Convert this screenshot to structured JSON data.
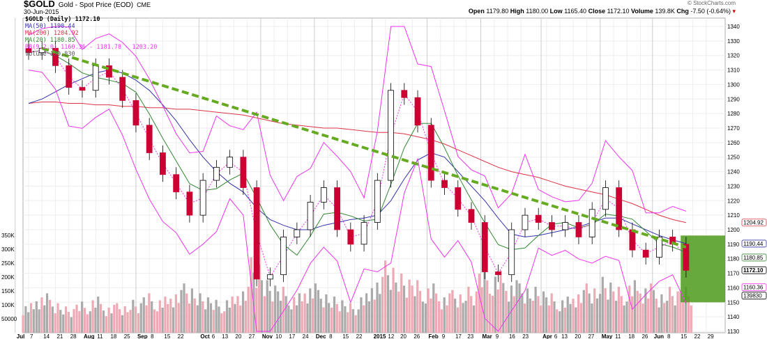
{
  "header": {
    "symbol": "$GOLD",
    "name": "Gold - Spot Price (EOD)",
    "exchange": "CME",
    "date": "30-Jun-2015",
    "credit": "© StockCharts.com",
    "open_label": "Open",
    "open": "1179.80",
    "high_label": "High",
    "high": "1180.00",
    "low_label": "Low",
    "low": "1165.40",
    "close_label": "Close",
    "close": "1172.10",
    "volume_label": "Volume",
    "volume": "139.8K",
    "chg_label": "Chg",
    "chg": "-7.50 (-0.64%)"
  },
  "legend": {
    "main": "$GOLD (Daily) 1172.10",
    "ma50": "MA(50) 1190.44",
    "ma200": "MA(200) 1204.92",
    "ma20": "MA(20) 1180.85",
    "bb": "BB(9,2.0) 1160.36 - 1181.78 - 1203.20",
    "volume": "Volume 139,830"
  },
  "colors": {
    "up": "#ffffff",
    "down": "#cc0033",
    "ma50": "#3333aa",
    "ma200": "#dd3344",
    "ma20": "#338833",
    "bb": "#ee33ee",
    "trend": "#66aa22",
    "vol_up": "#aaaaaa",
    "vol_down": "#eeaab4",
    "highlight": "#4c9a1a"
  },
  "chart_data": {
    "type": "candlestick",
    "ylim": [
      1130,
      1340
    ],
    "yticks": [
      1130,
      1140,
      1150,
      1160,
      1170,
      1180,
      1190,
      1200,
      1210,
      1220,
      1230,
      1240,
      1250,
      1260,
      1270,
      1280,
      1290,
      1300,
      1310,
      1320,
      1330,
      1340
    ],
    "volume_ticks": [
      {
        "v": 50000,
        "label": "50000"
      },
      {
        "v": 100000,
        "label": "100K"
      },
      {
        "v": 150000,
        "label": "150K"
      },
      {
        "v": 200000,
        "label": "200K"
      },
      {
        "v": 250000,
        "label": "250K"
      },
      {
        "v": 300000,
        "label": "300K"
      },
      {
        "v": 350000,
        "label": "350K"
      }
    ],
    "xticks": [
      {
        "i": 0,
        "label": "Jul",
        "major": true
      },
      {
        "i": 1,
        "label": "7"
      },
      {
        "i": 2,
        "label": "14"
      },
      {
        "i": 3,
        "label": "21"
      },
      {
        "i": 4,
        "label": "28"
      },
      {
        "i": 5,
        "label": "Aug",
        "major": true
      },
      {
        "i": 6,
        "label": "11"
      },
      {
        "i": 7,
        "label": "18"
      },
      {
        "i": 8,
        "label": "25"
      },
      {
        "i": 9,
        "label": "Sep",
        "major": true
      },
      {
        "i": 10,
        "label": "8"
      },
      {
        "i": 11,
        "label": "15"
      },
      {
        "i": 12,
        "label": "22"
      },
      {
        "i": 13.7,
        "label": "Oct",
        "major": true
      },
      {
        "i": 14.3,
        "label": "6"
      },
      {
        "i": 15.3,
        "label": "13"
      },
      {
        "i": 16.3,
        "label": "20"
      },
      {
        "i": 17.3,
        "label": "27"
      },
      {
        "i": 18.3,
        "label": "Nov",
        "major": true
      },
      {
        "i": 19.3,
        "label": "10"
      },
      {
        "i": 20.3,
        "label": "17"
      },
      {
        "i": 21.3,
        "label": "24"
      },
      {
        "i": 22.3,
        "label": "Dec",
        "major": true
      },
      {
        "i": 23.3,
        "label": "8"
      },
      {
        "i": 24.3,
        "label": "15"
      },
      {
        "i": 25.3,
        "label": "22"
      },
      {
        "i": 26.6,
        "label": "2015",
        "major": true
      },
      {
        "i": 27.6,
        "label": "12"
      },
      {
        "i": 28.6,
        "label": "20"
      },
      {
        "i": 29.6,
        "label": "26"
      },
      {
        "i": 30.7,
        "label": "Feb",
        "major": true
      },
      {
        "i": 31.7,
        "label": "9"
      },
      {
        "i": 32.7,
        "label": "17"
      },
      {
        "i": 33.6,
        "label": "23"
      },
      {
        "i": 34.7,
        "label": "Mar",
        "major": true
      },
      {
        "i": 35.7,
        "label": "9"
      },
      {
        "i": 36.7,
        "label": "16"
      },
      {
        "i": 37.7,
        "label": "23"
      },
      {
        "i": 39.2,
        "label": "Apr",
        "major": true
      },
      {
        "i": 39.6,
        "label": "6"
      },
      {
        "i": 40.6,
        "label": "13"
      },
      {
        "i": 41.6,
        "label": "20"
      },
      {
        "i": 42.6,
        "label": "27"
      },
      {
        "i": 43.6,
        "label": "May",
        "major": true
      },
      {
        "i": 44.6,
        "label": "11"
      },
      {
        "i": 45.6,
        "label": "18"
      },
      {
        "i": 46.6,
        "label": "26"
      },
      {
        "i": 47.5,
        "label": "Jun",
        "major": true
      },
      {
        "i": 48.5,
        "label": "8"
      },
      {
        "i": 49.5,
        "label": "15"
      },
      {
        "i": 50.5,
        "label": "22"
      },
      {
        "i": 51.5,
        "label": "29"
      }
    ],
    "close": [
      1322,
      1325,
      1313,
      1298,
      1296,
      1313,
      1305,
      1289,
      1272,
      1253,
      1238,
      1226,
      1210,
      1234,
      1243,
      1250,
      1229,
      1166,
      1169,
      1195,
      1200,
      1219,
      1229,
      1200,
      1190,
      1205,
      1234,
      1296,
      1291,
      1272,
      1234,
      1229,
      1214,
      1205,
      1171,
      1169,
      1200,
      1210,
      1205,
      1200,
      1205,
      1195,
      1214,
      1229,
      1200,
      1186,
      1181,
      1195,
      1190,
      1172
    ],
    "volume": [
      90000,
      120000,
      100000,
      80000,
      95000,
      110000,
      85000,
      90000,
      100000,
      120000,
      110000,
      130000,
      150000,
      120000,
      100000,
      110000,
      140000,
      230000,
      160000,
      140000,
      120000,
      150000,
      130000,
      110000,
      90000,
      120000,
      170000,
      220000,
      180000,
      160000,
      150000,
      120000,
      130000,
      140000,
      200000,
      190000,
      160000,
      150000,
      140000,
      120000,
      110000,
      130000,
      150000,
      170000,
      140000,
      160000,
      150000,
      130000,
      140000,
      139830
    ],
    "ma200": [
      1287,
      1288,
      1288,
      1287,
      1287,
      1286,
      1286,
      1285,
      1285,
      1284,
      1284,
      1283,
      1283,
      1282,
      1281,
      1280,
      1279,
      1277,
      1275,
      1273,
      1272,
      1271,
      1270,
      1270,
      1269,
      1268,
      1267,
      1267,
      1266,
      1264,
      1262,
      1259,
      1255,
      1251,
      1247,
      1243,
      1240,
      1238,
      1236,
      1233,
      1230,
      1228,
      1226,
      1224,
      1221,
      1218,
      1214,
      1210,
      1207,
      1204.92
    ],
    "ma50": [
      1287,
      1290,
      1295,
      1300,
      1304,
      1308,
      1310,
      1308,
      1303,
      1296,
      1286,
      1275,
      1262,
      1250,
      1240,
      1232,
      1226,
      1215,
      1207,
      1203,
      1200,
      1200,
      1203,
      1205,
      1207,
      1208,
      1210,
      1220,
      1235,
      1248,
      1253,
      1250,
      1240,
      1230,
      1220,
      1208,
      1197,
      1195,
      1196,
      1198,
      1200,
      1202,
      1205,
      1208,
      1208,
      1204,
      1200,
      1196,
      1193,
      1190.44
    ],
    "trendline": {
      "from": {
        "i": 2,
        "price": 1325
      },
      "to": {
        "i": 49,
        "price": 1188
      }
    },
    "last_labels": [
      {
        "price": 1204.92,
        "label": "1204.92",
        "color": "#dd3344"
      },
      {
        "price": 1190.44,
        "label": "1190.44",
        "color": "#3333aa"
      },
      {
        "price": 1180.85,
        "label": "1180.85",
        "color": "#338833"
      },
      {
        "price": 1172.1,
        "label": "1172.10",
        "color": "#000000"
      },
      {
        "price": 1160.36,
        "label": "1160.36",
        "color": "#ee33ee"
      }
    ],
    "volume_label": "139830",
    "grid": true
  }
}
